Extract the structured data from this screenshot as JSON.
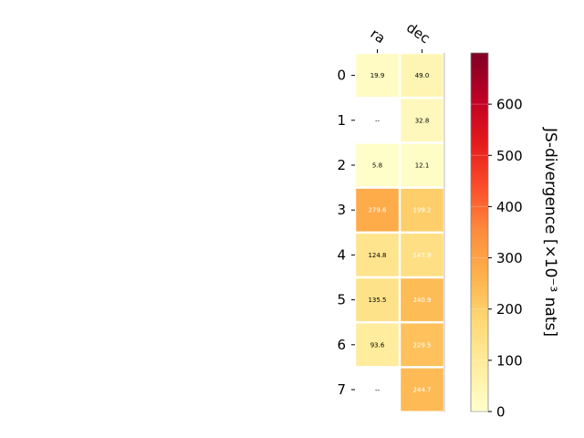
{
  "chart_data": {
    "type": "heatmap",
    "title": "",
    "columns": [
      "ra",
      "dec"
    ],
    "rows": [
      "0",
      "1",
      "2",
      "3",
      "4",
      "5",
      "6",
      "7"
    ],
    "values": [
      [
        19.9,
        49.0
      ],
      [
        null,
        32.8
      ],
      [
        5.8,
        12.1
      ],
      [
        279.6,
        199.2
      ],
      [
        124.8,
        147.9
      ],
      [
        135.5,
        240.9
      ],
      [
        93.6,
        229.5
      ],
      [
        null,
        244.7
      ]
    ],
    "cell_labels": [
      [
        "19.9",
        "49.0"
      ],
      [
        "--",
        "32.8"
      ],
      [
        "5.8",
        "12.1"
      ],
      [
        "279.6",
        "199.2"
      ],
      [
        "124.8",
        "147.9"
      ],
      [
        "135.5",
        "240.9"
      ],
      [
        "93.6",
        "229.5"
      ],
      [
        "--",
        "244.7"
      ]
    ],
    "missing_label": "--",
    "colorbar": {
      "label": "JS-divergence [×10⁻³ nats]",
      "range": [
        0,
        700
      ],
      "ticks": [
        "0",
        "100",
        "200",
        "300",
        "400",
        "500",
        "600"
      ],
      "colormap": "YlOrRd"
    }
  }
}
